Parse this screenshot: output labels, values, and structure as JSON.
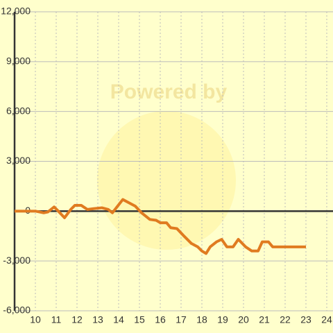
{
  "chart_data": {
    "type": "line",
    "watermark": "Powered by",
    "x": [
      9,
      10,
      10.4,
      10.6,
      10.9,
      11.1,
      11.4,
      11.7,
      11.9,
      12.2,
      12.5,
      12.8,
      13.2,
      13.5,
      13.7,
      14.2,
      14.5,
      14.8,
      15.1,
      15.5,
      15.8,
      16,
      16.3,
      16.5,
      16.8,
      17.1,
      17.5,
      17.8,
      18,
      18.2,
      18.4,
      18.7,
      18.95,
      19.2,
      19.5,
      19.75,
      20.1,
      20.4,
      20.7,
      20.9,
      21.2,
      21.4,
      22,
      22.5,
      23
    ],
    "series": [
      {
        "color": "#e07b20",
        "values": [
          0,
          0,
          -100,
          -50,
          250,
          0,
          -400,
          100,
          350,
          350,
          100,
          150,
          200,
          100,
          -100,
          700,
          500,
          300,
          -100,
          -500,
          -550,
          -700,
          -700,
          -1000,
          -1050,
          -1450,
          -1950,
          -2150,
          -2400,
          -2550,
          -2150,
          -1850,
          -1700,
          -2150,
          -2150,
          -1700,
          -2150,
          -2400,
          -2400,
          -1850,
          -1850,
          -2150,
          -2150,
          -2150,
          -2150
        ]
      }
    ],
    "xlim": [
      9,
      24.3
    ],
    "xticks": [
      10,
      11,
      12,
      13,
      14,
      15,
      16,
      17,
      18,
      19,
      20,
      21,
      22,
      23,
      24
    ],
    "ylim": [
      -6000,
      12000
    ],
    "yticks": [
      {
        "value": -6000,
        "label": "-6,000"
      },
      {
        "value": -3000,
        "label": "-3,000"
      },
      0,
      {
        "value": 3000,
        "label": "3,000"
      },
      {
        "value": 6000,
        "label": "6,000"
      },
      {
        "value": 9000,
        "label": "9,000"
      },
      {
        "value": 12000,
        "label": "12,000"
      }
    ],
    "grid": true
  }
}
